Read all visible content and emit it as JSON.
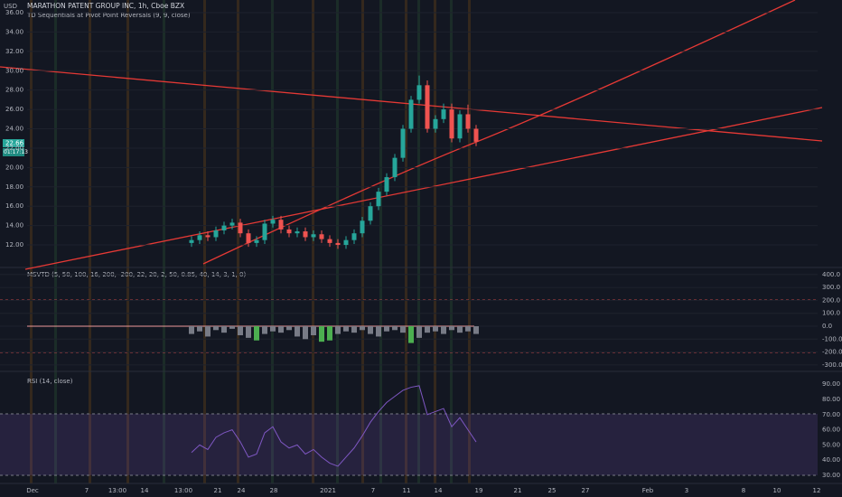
{
  "header": {
    "symbol": "MARATHON PATENT GROUP INC, 1h, Cboe BZX",
    "study": "TD Sequentials at Pivot Point Reversals (9, 9, close)",
    "currency": "USD",
    "last_price": "22.66",
    "countdown": "01:17:13"
  },
  "price_pane": {
    "yticks": [
      {
        "value": 36,
        "label": "36.00"
      },
      {
        "value": 34,
        "label": "34.00"
      },
      {
        "value": 32,
        "label": "32.00"
      },
      {
        "value": 30,
        "label": "30.00"
      },
      {
        "value": 28,
        "label": "28.00"
      },
      {
        "value": 26,
        "label": "26.00"
      },
      {
        "value": 24,
        "label": "24.00"
      },
      {
        "value": 22,
        "label": "22.00"
      },
      {
        "value": 20,
        "label": "20.00"
      },
      {
        "value": 18,
        "label": "18.00"
      },
      {
        "value": 16,
        "label": "16.00"
      },
      {
        "value": 14,
        "label": "14.00"
      },
      {
        "value": 12,
        "label": "12.00"
      }
    ],
    "open": [
      12.2,
      12.5,
      13,
      12.8,
      13.5,
      14,
      14.3,
      13.2,
      12.2,
      12.5,
      14.2,
      14.6,
      13.6,
      13.2,
      13.4,
      12.8,
      13.1,
      12.6,
      12.2,
      12.0,
      12.5,
      13.2,
      14.5,
      16,
      17.5,
      19,
      21,
      24,
      27,
      28.5,
      24,
      25,
      26,
      23,
      25.5,
      24
    ],
    "high": [
      12.9,
      13.4,
      13.4,
      13.9,
      14.4,
      14.7,
      14.7,
      13.6,
      12.9,
      14.6,
      15,
      15,
      14,
      13.8,
      13.8,
      13.5,
      13.5,
      13,
      12.6,
      12.9,
      13.6,
      14.9,
      16.4,
      17.9,
      19.4,
      21.4,
      24.4,
      27.4,
      29.5,
      29,
      25.4,
      26.6,
      26.6,
      25.9,
      26.5,
      24.4
    ],
    "low": [
      11.8,
      12.1,
      12.4,
      12.4,
      13.1,
      13.6,
      12.8,
      11.8,
      11.8,
      12.1,
      13.8,
      13.2,
      12.8,
      12.8,
      12.4,
      12.4,
      12.2,
      11.8,
      11.6,
      11.6,
      12.1,
      12.8,
      14.1,
      15.6,
      17.1,
      18.6,
      20.6,
      23.6,
      26.6,
      23.6,
      23.6,
      24.6,
      22.6,
      22.6,
      23.6,
      22.2
    ],
    "close": [
      12.5,
      13,
      12.8,
      13.5,
      14,
      14.3,
      13.2,
      12.2,
      12.5,
      14.2,
      14.6,
      13.6,
      13.2,
      13.4,
      12.8,
      13.1,
      12.6,
      12.2,
      12.0,
      12.5,
      13.2,
      14.5,
      16,
      17.5,
      19,
      21,
      24,
      27,
      28.5,
      24,
      25,
      26,
      23,
      25.5,
      24,
      22.66
    ]
  },
  "msvtd_pane": {
    "title": "MSVTD (5, 50, 100, 16, 200, -200, 22, 20, 2, 50, 0.85, 40, 14, 3, 1, 0)",
    "yticks": [
      {
        "value": 400,
        "label": "400.0"
      },
      {
        "value": 300,
        "label": "300.0"
      },
      {
        "value": 200,
        "label": "200.0"
      },
      {
        "value": 100,
        "label": "100.0"
      },
      {
        "value": 0,
        "label": "0.0"
      },
      {
        "value": -100,
        "label": "-100.0"
      },
      {
        "value": -200,
        "label": "-200.0"
      },
      {
        "value": -300,
        "label": "-300.0"
      }
    ],
    "histogram": [
      -60,
      -40,
      -80,
      -30,
      -50,
      -20,
      -70,
      -90,
      -110,
      -60,
      -40,
      -50,
      -30,
      -80,
      -100,
      -70,
      -120,
      -110,
      -60,
      -40,
      -50,
      -30,
      -60,
      -80,
      -40,
      -30,
      -50,
      -130,
      -90,
      -50,
      -40,
      -60,
      -30,
      -50,
      -40,
      -60
    ]
  },
  "rsi_pane": {
    "title": "RSI (14, close)",
    "yticks": [
      {
        "value": 90,
        "label": "90.00"
      },
      {
        "value": 80,
        "label": "80.00"
      },
      {
        "value": 70,
        "label": "70.00"
      },
      {
        "value": 60,
        "label": "60.00"
      },
      {
        "value": 50,
        "label": "50.00"
      },
      {
        "value": 40,
        "label": "40.00"
      },
      {
        "value": 30,
        "label": "30.00"
      }
    ],
    "values": [
      45,
      50,
      47,
      55,
      58,
      60,
      52,
      42,
      44,
      58,
      62,
      52,
      48,
      50,
      44,
      47,
      42,
      38,
      36,
      42,
      48,
      56,
      65,
      72,
      78,
      82,
      86,
      88,
      89,
      70,
      72,
      74,
      62,
      68,
      60,
      52
    ]
  },
  "time_axis": [
    "Dec",
    "7",
    "13:00",
    "14",
    "13:00",
    "21",
    "24",
    "28",
    "2021",
    "7",
    "11",
    "14",
    "19",
    "21",
    "25",
    "27",
    "Feb",
    "3",
    "8",
    "10",
    "12"
  ]
}
